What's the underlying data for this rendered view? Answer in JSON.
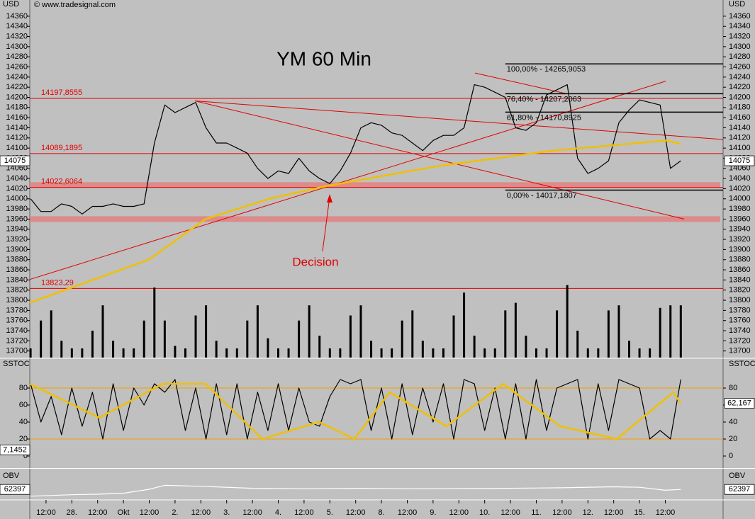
{
  "chart_data": [
    {
      "type": "line",
      "title": "YM 60 Min",
      "unit": "USD",
      "source": "© www.tradesignal.com",
      "annotations": [
        "Decision"
      ],
      "xlim": [
        -0.63,
        26.24
      ],
      "xticks": [
        {
          "value": 0,
          "label": "12:00"
        },
        {
          "value": 1,
          "label": "28."
        },
        {
          "value": 2,
          "label": "12:00"
        },
        {
          "value": 3,
          "label": "Okt"
        },
        {
          "value": 4,
          "label": "12:00"
        },
        {
          "value": 5,
          "label": "2."
        },
        {
          "value": 6,
          "label": "12:00"
        },
        {
          "value": 7,
          "label": "3."
        },
        {
          "value": 8,
          "label": "12:00"
        },
        {
          "value": 9,
          "label": "4."
        },
        {
          "value": 10,
          "label": "12:00"
        },
        {
          "value": 11,
          "label": "5."
        },
        {
          "value": 12,
          "label": "12:00"
        },
        {
          "value": 13,
          "label": "8."
        },
        {
          "value": 14,
          "label": "12:00"
        },
        {
          "value": 15,
          "label": "9."
        },
        {
          "value": 16,
          "label": "12:00"
        },
        {
          "value": 17,
          "label": "10."
        },
        {
          "value": 18,
          "label": "12:00"
        },
        {
          "value": 19,
          "label": "11."
        },
        {
          "value": 20,
          "label": "12:00"
        },
        {
          "value": 21,
          "label": "12."
        },
        {
          "value": 22,
          "label": "12:00"
        },
        {
          "value": 23,
          "label": "15."
        },
        {
          "value": 24,
          "label": "12:00"
        }
      ],
      "ylim": [
        13687,
        14378
      ],
      "yticks": [
        13700,
        13720,
        13740,
        13760,
        13780,
        13800,
        13820,
        13840,
        13860,
        13880,
        13900,
        13920,
        13940,
        13960,
        13980,
        14000,
        14020,
        14040,
        14060,
        14080,
        14100,
        14120,
        14140,
        14160,
        14180,
        14200,
        14220,
        14240,
        14260,
        14280,
        14300,
        14320,
        14340,
        14360
      ],
      "x": [
        -0.6,
        -0.2,
        0.2,
        0.6,
        1,
        1.4,
        1.8,
        2.2,
        2.6,
        3,
        3.4,
        3.8,
        4.2,
        4.6,
        5,
        5.4,
        5.8,
        6.2,
        6.6,
        7,
        7.4,
        7.8,
        8.2,
        8.6,
        9,
        9.4,
        9.8,
        10.2,
        10.6,
        11,
        11.4,
        11.8,
        12.2,
        12.6,
        13,
        13.4,
        13.8,
        14.2,
        14.6,
        15,
        15.4,
        15.8,
        16.2,
        16.6,
        17,
        17.4,
        17.8,
        18.2,
        18.6,
        19,
        19.4,
        19.8,
        20.2,
        20.6,
        21,
        21.4,
        21.8,
        22.2,
        22.6,
        23,
        23.4,
        23.8,
        24.2,
        24.6
      ],
      "series": [
        {
          "color": "#000000",
          "values": [
            14000,
            13975,
            13975,
            13990,
            13985,
            13970,
            13985,
            13985,
            13990,
            13985,
            13985,
            13990,
            14110,
            14185,
            14170,
            14180,
            14190,
            14140,
            14110,
            14110,
            14100,
            14090,
            14060,
            14040,
            14055,
            14050,
            14080,
            14055,
            14040,
            14030,
            14055,
            14090,
            14140,
            14150,
            14145,
            14130,
            14125,
            14110,
            14095,
            14115,
            14125,
            14125,
            14140,
            14225,
            14220,
            14210,
            14200,
            14140,
            14135,
            14150,
            14205,
            14215,
            14225,
            14080,
            14050,
            14060,
            14075,
            14150,
            14175,
            14195,
            14190,
            14185,
            14060,
            14075
          ]
        },
        {
          "type": "bar",
          "color": "#000000",
          "values": [
            13705,
            13760,
            13780,
            13720,
            13705,
            13705,
            13740,
            13790,
            13720,
            13705,
            13705,
            13760,
            13825,
            13760,
            13710,
            13705,
            13770,
            13790,
            13720,
            13705,
            13705,
            13760,
            13790,
            13725,
            13705,
            13705,
            13760,
            13790,
            13730,
            13705,
            13705,
            13770,
            13790,
            13720,
            13705,
            13705,
            13760,
            13780,
            13720,
            13705,
            13705,
            13770,
            13815,
            13730,
            13705,
            13705,
            13780,
            13795,
            13730,
            13705,
            13705,
            13780,
            13830,
            13740,
            13705,
            13705,
            13780,
            13790,
            13720,
            13705,
            13705,
            13785,
            13790,
            13790
          ]
        },
        {
          "color": "#f0c000",
          "line_style": "thick",
          "x": [
            -0.63,
            3.98,
            6.18,
            8.65,
            10.85,
            13.05,
            15.25,
            17.45,
            19.64,
            21.84,
            24.04,
            24.59
          ],
          "values": [
            13795,
            13880,
            13960,
            14000,
            14025,
            14045,
            14065,
            14080,
            14095,
            14105,
            14115,
            14108
          ]
        }
      ],
      "level_color": "#e00000",
      "levels": [
        {
          "value": 14197.8555,
          "label": "14197,8555"
        },
        {
          "value": 14089.1895,
          "label": "14089,1895"
        },
        {
          "value": 14022.6064,
          "label": "14022,6064"
        },
        {
          "value": 13823.29,
          "label": "13823,29"
        }
      ],
      "zone_color": "#e08080",
      "zones": [
        14027,
        13960
      ],
      "trendlines": [
        {
          "x": [
            -0.63,
            24.02
          ],
          "y": [
            13841,
            14232
          ]
        },
        {
          "x": [
            5.77,
            26.24
          ],
          "y": [
            14193,
            14117
          ]
        },
        {
          "x": [
            5.77,
            24.73
          ],
          "y": [
            14193,
            13960
          ]
        },
        {
          "x": [
            16.62,
            20.19
          ],
          "y": [
            14248,
            14207
          ]
        }
      ],
      "fib_start": 17.8,
      "fib": [
        {
          "value": 14265.9053,
          "label": "100,00% - 14265,9053"
        },
        {
          "value": 14207.2063,
          "label": "76,40% - 14207,2063"
        },
        {
          "value": 14170.8925,
          "label": "61,80% - 14170,8925"
        },
        {
          "value": 14017.1807,
          "label": "0,00% - 14017,1807"
        }
      ],
      "markers": [
        {
          "path": "series.0.values.63"
        }
      ]
    },
    {
      "type": "line",
      "title": "SSTOC",
      "ylim": [
        -13.3,
        114.2
      ],
      "yticks": [
        0,
        20,
        40,
        60,
        80
      ],
      "level_color": "#f0a000",
      "levels": [
        80,
        20
      ],
      "x": [
        -0.6,
        -0.2,
        0.2,
        0.6,
        1,
        1.4,
        1.8,
        2.2,
        2.6,
        3,
        3.4,
        3.8,
        4.2,
        4.6,
        5,
        5.4,
        5.8,
        6.2,
        6.6,
        7,
        7.4,
        7.8,
        8.2,
        8.6,
        9,
        9.4,
        9.8,
        10.2,
        10.6,
        11,
        11.4,
        11.8,
        12.2,
        12.6,
        13,
        13.4,
        13.8,
        14.2,
        14.6,
        15,
        15.4,
        15.8,
        16.2,
        16.6,
        17,
        17.4,
        17.8,
        18.2,
        18.6,
        19,
        19.4,
        19.8,
        20.2,
        20.6,
        21,
        21.4,
        21.8,
        22.2,
        22.6,
        23,
        23.4,
        23.8,
        24.2,
        24.6
      ],
      "series": [
        {
          "color": "#000000",
          "values": [
            85,
            40,
            70,
            25,
            80,
            35,
            75,
            20,
            85,
            30,
            80,
            60,
            85,
            75,
            90,
            30,
            80,
            20,
            85,
            25,
            85,
            20,
            75,
            30,
            85,
            30,
            80,
            40,
            35,
            70,
            90,
            85,
            90,
            30,
            80,
            20,
            85,
            25,
            80,
            40,
            85,
            20,
            90,
            85,
            30,
            80,
            20,
            85,
            20,
            90,
            30,
            80,
            85,
            90,
            20,
            85,
            30,
            90,
            85,
            80,
            20,
            30,
            20,
            90
          ]
        },
        {
          "color": "#f0c000",
          "line_style": "thick",
          "x": [
            -0.63,
            2.06,
            4.53,
            6.18,
            8.38,
            10.58,
            11.95,
            13.32,
            15.52,
            17.72,
            19.92,
            22.12,
            24.31,
            24.59
          ],
          "values": [
            85,
            45,
            85,
            85,
            20,
            40,
            20,
            75,
            35,
            85,
            35,
            20,
            75,
            62.167
          ]
        }
      ],
      "markers": [
        {
          "value": 7.1452,
          "label": "7,1452",
          "side": "left"
        },
        {
          "value": 62.167,
          "label": "62,167",
          "side": "right"
        }
      ]
    },
    {
      "type": "line",
      "title": "OBV",
      "ylim": [
        62200,
        62800
      ],
      "x": [
        -0.6,
        1,
        2,
        3,
        4,
        4.6,
        6,
        8,
        10,
        12,
        14,
        16,
        18,
        20,
        22,
        23,
        24,
        24.6
      ],
      "series": [
        {
          "color": "#ffffff",
          "values": [
            62260,
            62290,
            62300,
            62320,
            62400,
            62480,
            62460,
            62420,
            62410,
            62420,
            62410,
            62415,
            62420,
            62430,
            62450,
            62440,
            62380,
            62397
          ]
        }
      ],
      "markers": [
        {
          "path": "series.0.values.17"
        }
      ]
    }
  ]
}
